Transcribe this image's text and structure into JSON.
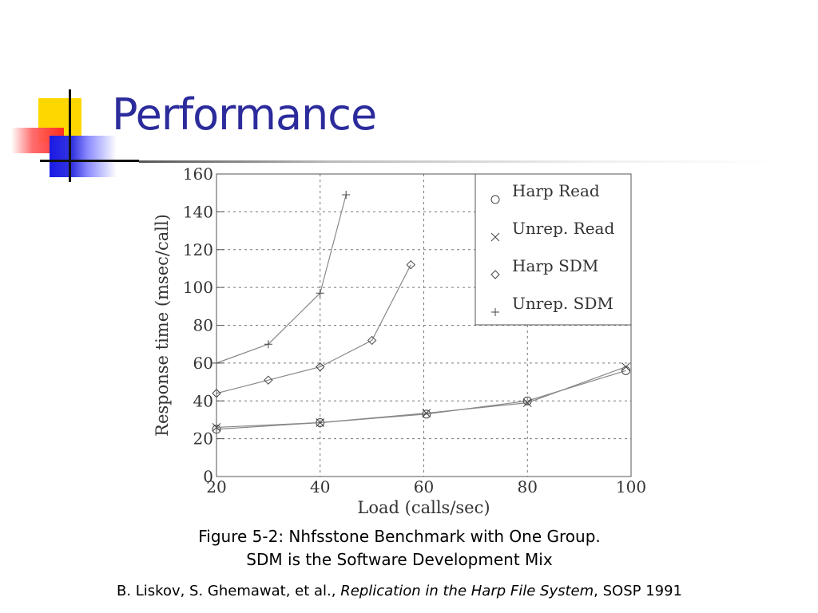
{
  "slide": {
    "title": "Performance",
    "caption_line1": "Figure 5-2: Nhfsstone Benchmark with One Group.",
    "caption_line2": "SDM is the Software Development Mix",
    "citation": {
      "authors": "B. Liskov, S. Ghemawat, et al., ",
      "work": "Replication in the Harp File System",
      "venue": ", SOSP 1991"
    }
  },
  "chart_data": {
    "type": "line",
    "title": "",
    "xlabel": "Load (calls/sec)",
    "ylabel": "Response time (msec/call)",
    "xlim": [
      20,
      100
    ],
    "ylim": [
      0,
      160
    ],
    "xticks": [
      20,
      40,
      60,
      80,
      100
    ],
    "yticks": [
      0,
      20,
      40,
      60,
      80,
      100,
      120,
      140,
      160
    ],
    "grid": "dotted",
    "legend": "top-right",
    "series": [
      {
        "name": "Harp Read",
        "marker": "circle",
        "points": [
          [
            20,
            25
          ],
          [
            40,
            28.5
          ],
          [
            60.5,
            33
          ],
          [
            80,
            40
          ],
          [
            99,
            56
          ]
        ]
      },
      {
        "name": "Unrep. Read",
        "marker": "x",
        "points": [
          [
            20,
            26
          ],
          [
            40,
            28.5
          ],
          [
            60.5,
            33.5
          ],
          [
            80,
            39
          ],
          [
            99,
            58
          ]
        ]
      },
      {
        "name": "Harp SDM",
        "marker": "diamond",
        "points": [
          [
            20,
            44
          ],
          [
            30,
            51
          ],
          [
            40,
            58
          ],
          [
            50,
            72
          ],
          [
            57.5,
            112
          ]
        ]
      },
      {
        "name": "Unrep. SDM",
        "marker": "plus",
        "points": [
          [
            20,
            60
          ],
          [
            30,
            70
          ],
          [
            40,
            97
          ],
          [
            45,
            149
          ]
        ]
      }
    ]
  }
}
